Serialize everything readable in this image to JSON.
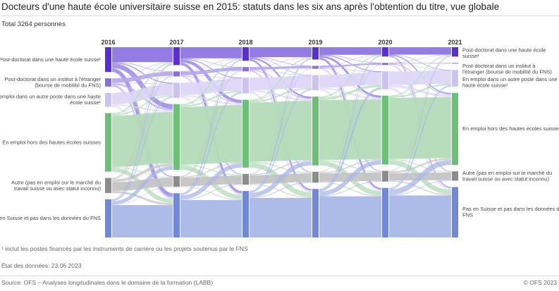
{
  "title": "Docteurs d'une haute école universitaire suisse en 2015: statuts dans les six ans après l'obtention du titre, vue globale",
  "subtitle": "Total 3264 personnes",
  "footnote": "¹ inclut les postes financés par les instruments de carrière ou les projets soutenus par le FNS",
  "data_state": "État des données: 23.06.2023",
  "source": "Source: OFS – Analyses longitudinales dans le domaine de la formation (LABB)",
  "copyright": "© OFS 2023",
  "chart_data": {
    "type": "sankey",
    "total": 3264,
    "columns": [
      "2016",
      "2017",
      "2018",
      "2019",
      "2020",
      "2021"
    ],
    "categories": [
      {
        "label_left": "Post-doctorat dans une haute école suisse¹",
        "label_right": "Post-doctorat dans une haute école suisse¹",
        "node_color": "#5a2fd0",
        "link_color": "#8d76e2"
      },
      {
        "label_left": "Post-doctorat dans un institut à l'étranger (bourse de mobilité du FNS)",
        "label_right": "Post-doctorat dans un institut à l'étranger (bourse de mobilité du FNS)",
        "node_color": "#8a6fdc",
        "link_color": "#b7a8ec"
      },
      {
        "label_left": "En emploi dans un autre poste dans une haute école suisse¹",
        "label_right": "En emploi dans un autre poste dans une haute école suisse¹",
        "node_color": "#cbc2f1",
        "link_color": "#ddd6f6"
      },
      {
        "label_left": "En emploi hors des hautes écoles suisses",
        "label_right": "En emploi hors des hautes écoles suisses",
        "node_color": "#6cbf77",
        "link_color": "#b3dbb8"
      },
      {
        "label_left": "Autre (pas en emploi sur le marché du travail suisse ou avec statut inconnu)",
        "label_right": "Autre (pas en emploi sur le marché du travail suisse ou avec statut inconnu)",
        "node_color": "#8c8c8c",
        "link_color": "#c4c4c4"
      },
      {
        "label_left": "Pas en Suisse et pas dans les données du FNS",
        "label_right": "Pas en Suisse et pas dans les données du FNS",
        "node_color": "#7187d8",
        "link_color": "#a8b7e6"
      }
    ],
    "values": {
      "2016": [
        510,
        170,
        285,
        1205,
        310,
        784
      ],
      "2017": [
        368,
        103,
        309,
        1353,
        221,
        910
      ],
      "2018": [
        279,
        88,
        323,
        1397,
        221,
        956
      ],
      "2019": [
        253,
        60,
        313,
        1416,
        224,
        998
      ],
      "2020": [
        192,
        44,
        369,
        1418,
        222,
        1019
      ],
      "2021": [
        193,
        15,
        341,
        1484,
        193,
        1038
      ]
    }
  }
}
